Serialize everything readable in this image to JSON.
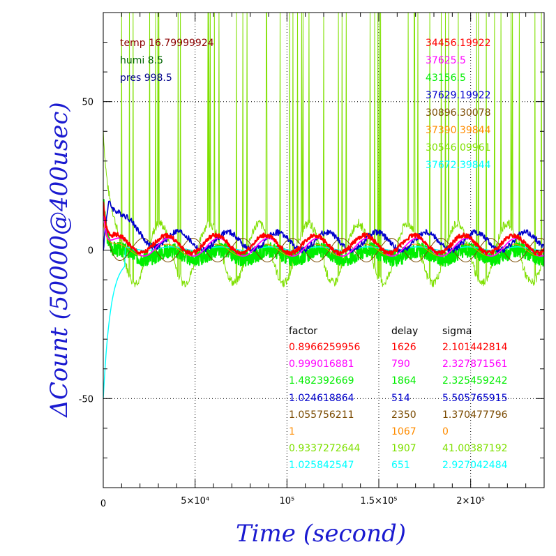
{
  "chart_data": {
    "type": "line",
    "title": "",
    "xlabel": "Time (second)",
    "ylabel": "ΔCount (50000@400usec)",
    "xlim": [
      0,
      240000
    ],
    "ylim": [
      -80,
      80
    ],
    "grid": true,
    "x_ticks": [
      {
        "value": 0,
        "label": "0"
      },
      {
        "value": 50000,
        "label": "5×10⁴"
      },
      {
        "value": 100000,
        "label": "10⁵"
      },
      {
        "value": 150000,
        "label": "1.5×10⁵"
      },
      {
        "value": 200000,
        "label": "2×10⁵"
      }
    ],
    "y_ticks": [
      {
        "value": 50,
        "label": "50"
      },
      {
        "value": 0,
        "label": "0"
      },
      {
        "value": -50,
        "label": "-50"
      }
    ],
    "env": [
      {
        "text": "temp 16.79999924",
        "color": "#8b0000"
      },
      {
        "text": "humi 8.5",
        "color": "#006400"
      },
      {
        "text": "pres 998.5",
        "color": "#00008b"
      }
    ],
    "columns": {
      "factor": "factor",
      "delay": "delay",
      "sigma": "sigma"
    },
    "series": [
      {
        "color": "#ff0000",
        "mean": "34456.19922",
        "factor": "0.8966259956",
        "delay": "1626",
        "sigma": "2.101442814"
      },
      {
        "color": "#ff00ff",
        "mean": "37625.5",
        "factor": "0.999016881",
        "delay": "790",
        "sigma": "2.327871561"
      },
      {
        "color": "#00ee00",
        "mean": "43156.5",
        "factor": "1.482392669",
        "delay": "1864",
        "sigma": "2.325459242"
      },
      {
        "color": "#0000cc",
        "mean": "37629.19922",
        "factor": "1.024618864",
        "delay": "514",
        "sigma": "5.505765915"
      },
      {
        "color": "#7a4a00",
        "mean": "30896.30078",
        "factor": "1.055756211",
        "delay": "2350",
        "sigma": "1.370477796"
      },
      {
        "color": "#ff8c00",
        "mean": "37390.39844",
        "factor": "1",
        "delay": "1067",
        "sigma": "0"
      },
      {
        "color": "#7fe000",
        "mean": "30546.09961",
        "factor": "0.9337272644",
        "delay": "1907",
        "sigma": "41.00387192"
      },
      {
        "color": "#00ffff",
        "mean": "37672.39844",
        "factor": "1.025842547",
        "delay": "651",
        "sigma": "2.927042484"
      }
    ]
  }
}
